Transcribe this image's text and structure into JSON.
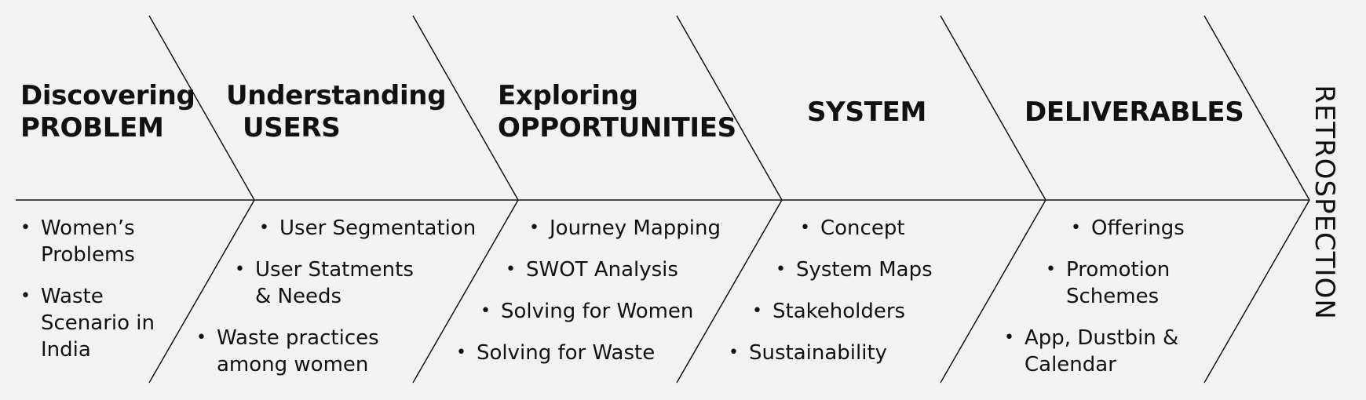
{
  "stages": [
    {
      "title_lines": [
        "Discovering",
        "PROBLEM"
      ],
      "items": [
        [
          "Women’s",
          "Problems"
        ],
        [
          "Waste",
          "Scenario in",
          "India"
        ]
      ]
    },
    {
      "title_lines": [
        "Understanding",
        "USERS"
      ],
      "items": [
        [
          "User Segmentation"
        ],
        [
          "User Statments",
          "& Needs"
        ],
        [
          "Waste practices",
          "among women"
        ]
      ]
    },
    {
      "title_lines": [
        "Exploring",
        "OPPORTUNITIES"
      ],
      "items": [
        [
          "Journey Mapping"
        ],
        [
          "SWOT Analysis"
        ],
        [
          "Solving for Women"
        ],
        [
          "Solving for Waste"
        ]
      ]
    },
    {
      "title_lines": [
        "SYSTEM"
      ],
      "items": [
        [
          "Concept"
        ],
        [
          "System Maps"
        ],
        [
          "Stakeholders"
        ],
        [
          "Sustainability"
        ]
      ]
    },
    {
      "title_lines": [
        "DELIVERABLES"
      ],
      "items": [
        [
          "Offerings"
        ],
        [
          "Promotion",
          "Schemes"
        ],
        [
          "App, Dustbin &",
          "Calendar"
        ]
      ]
    }
  ],
  "retrospection": "RETROSPECTION",
  "bullet_glyph": "•",
  "colors": {
    "background": "#f2f2f2",
    "line": "#111111",
    "text": "#111111"
  }
}
